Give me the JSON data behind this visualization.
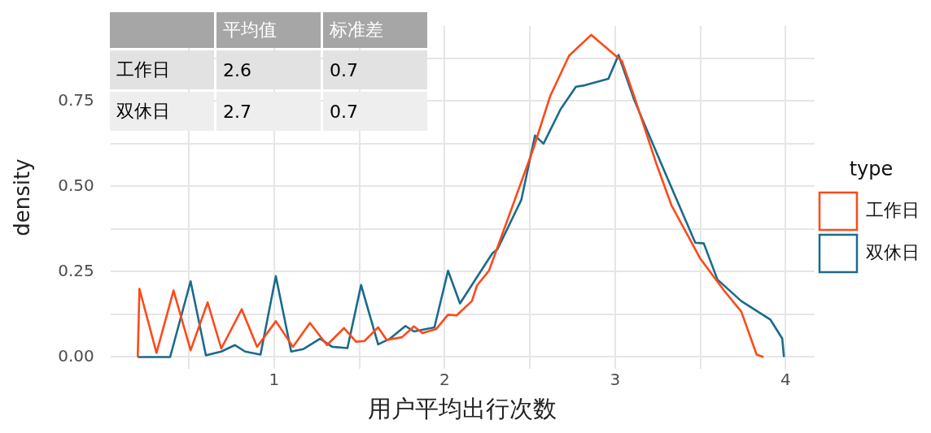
{
  "chart_data": {
    "type": "line",
    "xlabel": "用户平均出行次数",
    "ylabel": "density",
    "legend_title": "type",
    "legend": "right",
    "grid": true,
    "marker": "none",
    "line_style": "solid",
    "xlim": [
      0.04,
      4.17
    ],
    "ylim": [
      -0.035,
      0.97
    ],
    "xticks": [
      {
        "value": 0.5,
        "label": null
      },
      1,
      {
        "value": 1.5,
        "label": null
      },
      2,
      {
        "value": 2.5,
        "label": null
      },
      3,
      {
        "value": 3.5,
        "label": null
      },
      4
    ],
    "yticks": [
      {
        "value": 0,
        "label": "0.00"
      },
      {
        "value": 0.125,
        "label": null
      },
      {
        "value": 0.25,
        "label": "0.25"
      },
      {
        "value": 0.375,
        "label": null
      },
      {
        "value": 0.5,
        "label": "0.50"
      },
      {
        "value": 0.625,
        "label": null
      },
      {
        "value": 0.75,
        "label": "0.75"
      },
      {
        "value": 0.875,
        "label": null
      }
    ],
    "annotations": [
      "平均值",
      "标准差",
      "工作日",
      "2.6",
      "0.7",
      "双休日",
      "2.7",
      "0.7"
    ],
    "series": [
      {
        "name": "工作日",
        "color": "#fc4a1a",
        "x": [
          0.2,
          0.21,
          0.31,
          0.41,
          0.51,
          0.61,
          0.69,
          0.81,
          0.9,
          1.01,
          1.11,
          1.21,
          1.31,
          1.41,
          1.48,
          1.53,
          1.61,
          1.66,
          1.75,
          1.82,
          1.87,
          1.95,
          2.02,
          2.07,
          2.16,
          2.19,
          2.26,
          2.4,
          2.52,
          2.62,
          2.73,
          2.86,
          2.97,
          3.04,
          3.11,
          3.24,
          3.33,
          3.5,
          3.64,
          3.74,
          3.83,
          3.87
        ],
        "values": [
          0,
          0.2,
          0.012,
          0.195,
          0.02,
          0.16,
          0.025,
          0.14,
          0.03,
          0.105,
          0.03,
          0.1,
          0.035,
          0.085,
          0.045,
          0.047,
          0.087,
          0.05,
          0.058,
          0.09,
          0.07,
          0.082,
          0.124,
          0.122,
          0.164,
          0.21,
          0.253,
          0.445,
          0.61,
          0.766,
          0.883,
          0.944,
          0.897,
          0.867,
          0.766,
          0.569,
          0.445,
          0.288,
          0.194,
          0.133,
          0.007,
          0
        ]
      },
      {
        "name": "双休日",
        "color": "#1b6b8c",
        "x": [
          0.2,
          0.39,
          0.51,
          0.6,
          0.69,
          0.77,
          0.83,
          0.92,
          1.01,
          1.1,
          1.17,
          1.27,
          1.34,
          1.43,
          1.51,
          1.61,
          1.68,
          1.77,
          1.82,
          1.94,
          2.02,
          2.09,
          2.28,
          2.31,
          2.45,
          2.53,
          2.58,
          2.68,
          2.77,
          2.82,
          2.96,
          3.02,
          3.11,
          3.16,
          3.28,
          3.47,
          3.52,
          3.6,
          3.74,
          3.91,
          3.98,
          3.99
        ],
        "values": [
          0,
          0,
          0.222,
          0.005,
          0.016,
          0.035,
          0.016,
          0.007,
          0.237,
          0.016,
          0.023,
          0.054,
          0.03,
          0.026,
          0.211,
          0.037,
          0.054,
          0.091,
          0.075,
          0.087,
          0.253,
          0.157,
          0.304,
          0.316,
          0.461,
          0.649,
          0.625,
          0.726,
          0.792,
          0.796,
          0.815,
          0.885,
          0.756,
          0.696,
          0.555,
          0.335,
          0.333,
          0.227,
          0.164,
          0.11,
          0.054,
          0
        ]
      }
    ]
  }
}
